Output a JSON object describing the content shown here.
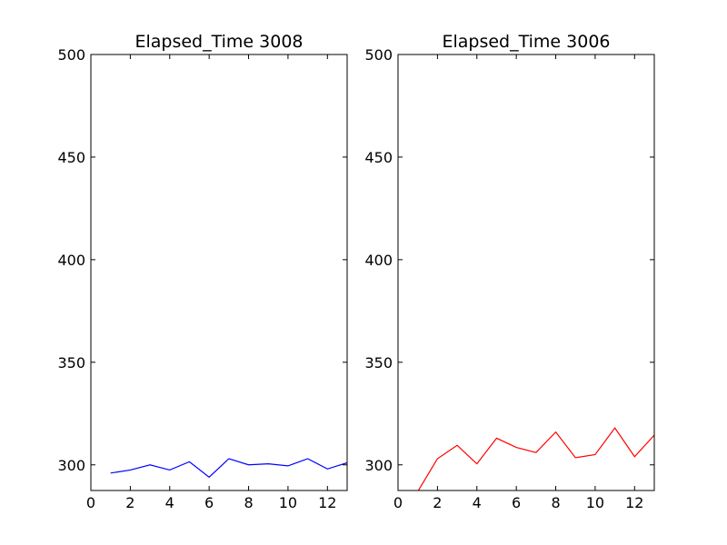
{
  "chart_data": [
    {
      "type": "line",
      "title": "Elapsed_Time 3008",
      "xlabel": "",
      "ylabel": "",
      "xlim": [
        0,
        13
      ],
      "ylim": [
        287.5,
        500
      ],
      "xticks": [
        0,
        2,
        4,
        6,
        8,
        10,
        12
      ],
      "yticks": [
        300,
        350,
        400,
        450,
        500
      ],
      "grid": false,
      "series": [
        {
          "color": "#0000ff",
          "x": [
            1,
            2,
            3,
            4,
            5,
            6,
            7,
            8,
            9,
            10,
            11,
            12,
            13
          ],
          "y": [
            296,
            297.5,
            300,
            297.5,
            301.5,
            294,
            303,
            300,
            300.5,
            299.5,
            303,
            298,
            301
          ]
        }
      ]
    },
    {
      "type": "line",
      "title": "Elapsed_Time 3006",
      "xlabel": "",
      "ylabel": "",
      "xlim": [
        0,
        13
      ],
      "ylim": [
        287.5,
        500
      ],
      "xticks": [
        0,
        2,
        4,
        6,
        8,
        10,
        12
      ],
      "yticks": [
        300,
        350,
        400,
        450,
        500
      ],
      "grid": false,
      "series": [
        {
          "color": "#ff0000",
          "x": [
            1,
            2,
            3,
            4,
            5,
            6,
            7,
            8,
            9,
            10,
            11,
            12,
            13
          ],
          "y": [
            287,
            303,
            309.5,
            300.5,
            313,
            308.5,
            306,
            316,
            303.5,
            305,
            318,
            304,
            314.5
          ]
        }
      ]
    }
  ]
}
